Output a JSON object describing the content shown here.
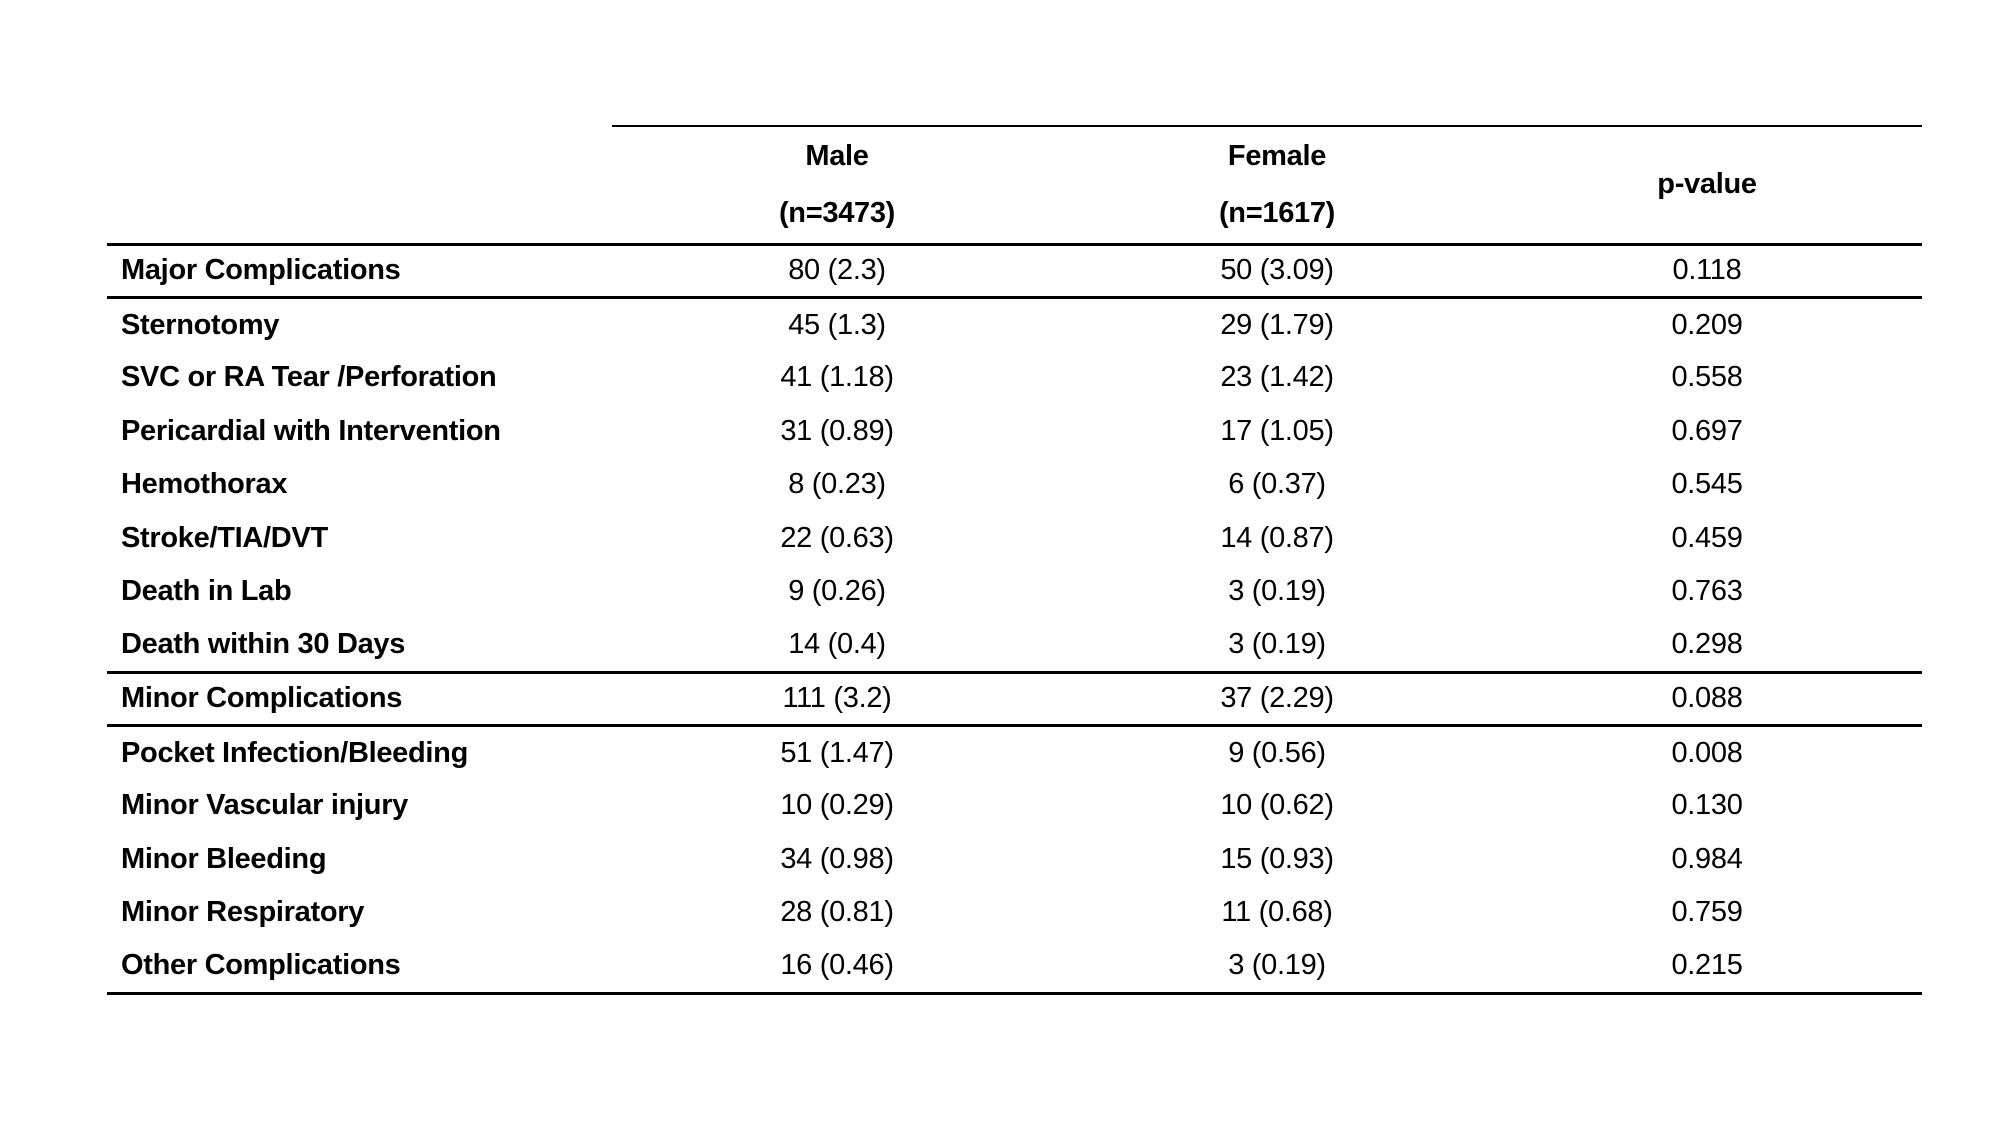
{
  "colors": {
    "background": "#ffffff",
    "text": "#000000",
    "rule": "#000000"
  },
  "chart_data": {
    "type": "table",
    "columns": [
      "",
      "Male (n=3473)",
      "Female (n=1617)",
      "p-value"
    ],
    "header": {
      "male_line1": "Male",
      "male_line2": "(n=3473)",
      "female_line1": "Female",
      "female_line2": "(n=1617)",
      "pvalue": "p-value"
    },
    "rows": [
      {
        "label": "Major Complications",
        "male": "80 (2.3)",
        "female": "50 (3.09)",
        "pvalue": "0.118",
        "section": true,
        "rule_below": true
      },
      {
        "label": "Sternotomy",
        "male": "45 (1.3)",
        "female": "29 (1.79)",
        "pvalue": "0.209",
        "section": false,
        "rule_below": false
      },
      {
        "label": "SVC or RA Tear /Perforation",
        "male": "41 (1.18)",
        "female": "23 (1.42)",
        "pvalue": "0.558",
        "section": false,
        "rule_below": false
      },
      {
        "label": "Pericardial with Intervention",
        "male": "31 (0.89)",
        "female": "17 (1.05)",
        "pvalue": "0.697",
        "section": false,
        "rule_below": false
      },
      {
        "label": "Hemothorax",
        "male": "8 (0.23)",
        "female": "6 (0.37)",
        "pvalue": "0.545",
        "section": false,
        "rule_below": false
      },
      {
        "label": "Stroke/TIA/DVT",
        "male": "22 (0.63)",
        "female": "14 (0.87)",
        "pvalue": "0.459",
        "section": false,
        "rule_below": false
      },
      {
        "label": "Death in Lab",
        "male": "9 (0.26)",
        "female": "3 (0.19)",
        "pvalue": "0.763",
        "section": false,
        "rule_below": false
      },
      {
        "label": "Death within 30 Days",
        "male": "14 (0.4)",
        "female": "3 (0.19)",
        "pvalue": "0.298",
        "section": false,
        "rule_below": true
      },
      {
        "label": "Minor Complications",
        "male": "111 (3.2)",
        "female": "37 (2.29)",
        "pvalue": "0.088",
        "section": true,
        "rule_below": true
      },
      {
        "label": "Pocket Infection/Bleeding",
        "male": "51 (1.47)",
        "female": "9 (0.56)",
        "pvalue": "0.008",
        "section": false,
        "rule_below": false
      },
      {
        "label": "Minor Vascular injury",
        "male": "10 (0.29)",
        "female": "10 (0.62)",
        "pvalue": "0.130",
        "section": false,
        "rule_below": false
      },
      {
        "label": "Minor Bleeding",
        "male": "34 (0.98)",
        "female": "15 (0.93)",
        "pvalue": "0.984",
        "section": false,
        "rule_below": false
      },
      {
        "label": "Minor Respiratory",
        "male": "28 (0.81)",
        "female": "11 (0.68)",
        "pvalue": "0.759",
        "section": false,
        "rule_below": false
      },
      {
        "label": "Other Complications",
        "male": "16 (0.46)",
        "female": "3 (0.19)",
        "pvalue": "0.215",
        "section": false,
        "rule_below": true
      }
    ]
  }
}
